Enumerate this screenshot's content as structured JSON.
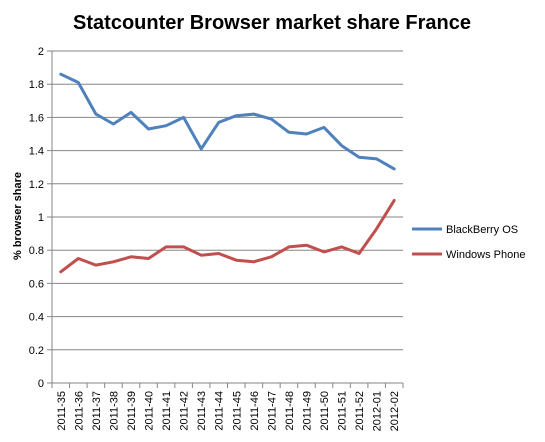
{
  "chart_data": {
    "type": "line",
    "title": "Statcounter Browser market share France",
    "ylabel": "% browser share",
    "xlabel": "",
    "ylim": [
      0,
      2
    ],
    "yticks": [
      0,
      0.2,
      0.4,
      0.6,
      0.8,
      1,
      1.2,
      1.4,
      1.6,
      1.8,
      2
    ],
    "ytick_labels": [
      "0",
      "0.2",
      "0.4",
      "0.6",
      "0.8",
      "1",
      "1.2",
      "1.4",
      "1.6",
      "1.8",
      "2"
    ],
    "grid": "horizontal",
    "legend_position": "right",
    "categories": [
      "2011-35",
      "2011-36",
      "2011-37",
      "2011-38",
      "2011-39",
      "2011-40",
      "2011-41",
      "2011-42",
      "2011-43",
      "2011-44",
      "2011-45",
      "2011-46",
      "2011-47",
      "2011-48",
      "2011-49",
      "2011-50",
      "2011-51",
      "2011-52",
      "2012-01",
      "2012-02"
    ],
    "series": [
      {
        "name": "BlackBerry OS",
        "color": "#4F81BD",
        "values": [
          1.86,
          1.81,
          1.62,
          1.56,
          1.63,
          1.53,
          1.55,
          1.6,
          1.41,
          1.57,
          1.61,
          1.62,
          1.59,
          1.51,
          1.5,
          1.54,
          1.43,
          1.36,
          1.35,
          1.29
        ]
      },
      {
        "name": "Windows Phone",
        "color": "#C0504D",
        "values": [
          0.67,
          0.75,
          0.71,
          0.73,
          0.76,
          0.75,
          0.82,
          0.82,
          0.77,
          0.78,
          0.74,
          0.73,
          0.76,
          0.82,
          0.83,
          0.79,
          0.82,
          0.78,
          0.93,
          1.1
        ]
      }
    ]
  }
}
